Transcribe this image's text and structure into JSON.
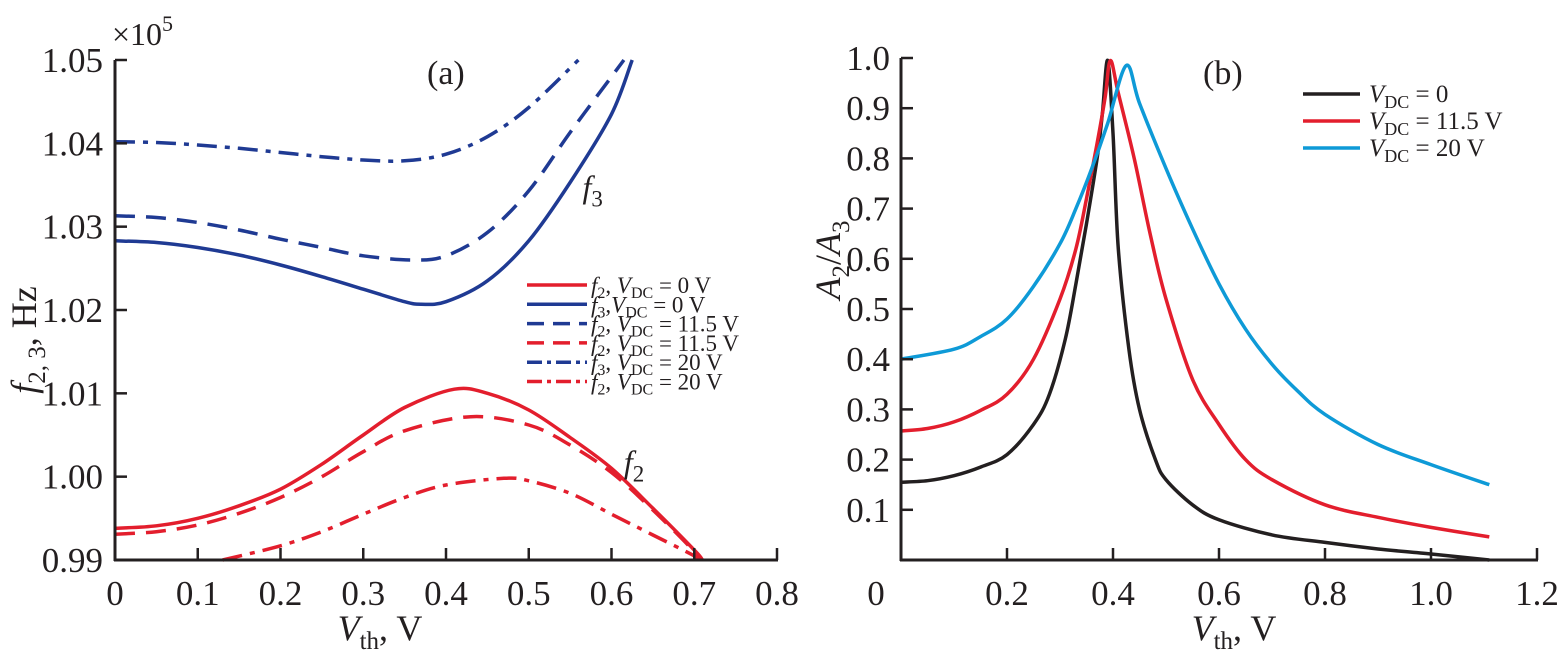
{
  "chart_data": [
    {
      "panel": "(a)",
      "type": "line",
      "title": "",
      "xlabel": "V_th, V",
      "xlabel_main": "V",
      "xlabel_sub": "th",
      "xlabel_tail": ", V",
      "ylabel": "f_{2,3}, Hz",
      "ylabel_main": "f",
      "ylabel_sub": "2, 3",
      "ylabel_tail": ", Hz",
      "y_multiplier": "×10",
      "y_multiplier_exp": "5",
      "xlim": [
        0,
        0.8
      ],
      "ylim": [
        0.99,
        1.05
      ],
      "xticks": [
        0,
        0.1,
        0.2,
        0.3,
        0.4,
        0.5,
        0.6,
        0.7,
        0.8
      ],
      "xtick_labels": [
        "0",
        "0.1",
        "0.2",
        "0.3",
        "0.4",
        "0.5",
        "0.6",
        "0.7",
        "0.8"
      ],
      "yticks": [
        0.99,
        1.0,
        1.01,
        1.02,
        1.03,
        1.04,
        1.05
      ],
      "ytick_labels": [
        "0.99",
        "1.00",
        "1.01",
        "1.02",
        "1.03",
        "1.04",
        "1.05"
      ],
      "grid": false,
      "legend_position": "center-right",
      "annotations": [
        {
          "text_main": "f",
          "text_sub": "3",
          "x": 0.565,
          "y": 1.0335
        },
        {
          "text_main": "f",
          "text_sub": "2",
          "x": 0.615,
          "y": 1.0005
        }
      ],
      "series": [
        {
          "name": "f2, VDC = 0 V",
          "legend_f": "f",
          "legend_fsub": "2",
          "legend_sep": ", ",
          "legend_v": "V",
          "legend_vsub": "DC",
          "legend_rest": " = 0 V",
          "color": "#e31e2d",
          "dash": "solid",
          "x": [
            0,
            0.05,
            0.1,
            0.15,
            0.2,
            0.25,
            0.3,
            0.35,
            0.41,
            0.45,
            0.5,
            0.55,
            0.6,
            0.65,
            0.7,
            0.71
          ],
          "y": [
            0.9938,
            0.9941,
            0.995,
            0.9965,
            0.9985,
            1.0015,
            1.005,
            1.0083,
            1.0105,
            1.01,
            1.008,
            1.0047,
            1.001,
            0.9962,
            0.9912,
            0.99
          ]
        },
        {
          "name": "f3, VDC = 0 V",
          "legend_f": "f",
          "legend_fsub": "3",
          "legend_sep": ",",
          "legend_v": "V",
          "legend_vsub": "DC",
          "legend_rest": " = 0 V",
          "color": "#1f3a93",
          "dash": "solid",
          "x": [
            0,
            0.05,
            0.1,
            0.15,
            0.2,
            0.25,
            0.3,
            0.35,
            0.37,
            0.4,
            0.45,
            0.5,
            0.55,
            0.6,
            0.625
          ],
          "y": [
            1.0283,
            1.0281,
            1.0275,
            1.0266,
            1.0254,
            1.024,
            1.0225,
            1.021,
            1.0207,
            1.021,
            1.0235,
            1.0283,
            1.0353,
            1.0435,
            1.05
          ]
        },
        {
          "name": "f2, VDC = 11.5 V",
          "legend_f": "f",
          "legend_fsub": "2",
          "legend_sep": ", ",
          "legend_v": "V",
          "legend_vsub": "DC",
          "legend_rest": " = 11.5 V",
          "color": "#1f3a93",
          "dash": "dashed",
          "plotted_as": "f3 curve (blue dashed)",
          "x": [
            0,
            0.05,
            0.1,
            0.15,
            0.2,
            0.25,
            0.3,
            0.36,
            0.4,
            0.45,
            0.5,
            0.55,
            0.6,
            0.615
          ],
          "y": [
            1.0313,
            1.0311,
            1.0305,
            1.0296,
            1.0285,
            1.0275,
            1.0265,
            1.026,
            1.0265,
            1.0293,
            1.0343,
            1.0413,
            1.048,
            1.05
          ]
        },
        {
          "name": "f2, VDC = 11.5 V",
          "legend_f": "f",
          "legend_fsub": "2",
          "legend_sep": ", ",
          "legend_v": "V",
          "legend_vsub": "DC",
          "legend_rest": " = 11.5 V",
          "color": "#e31e2d",
          "dash": "dashed",
          "x": [
            0,
            0.05,
            0.1,
            0.15,
            0.2,
            0.25,
            0.3,
            0.35,
            0.43,
            0.5,
            0.55,
            0.6,
            0.65,
            0.7,
            0.705
          ],
          "y": [
            0.9931,
            0.9934,
            0.9942,
            0.9956,
            0.9975,
            1.0,
            1.003,
            1.0055,
            1.0072,
            1.0062,
            1.0038,
            1.0005,
            0.996,
            0.991,
            0.99
          ]
        },
        {
          "name": "f3, VDC = 20 V",
          "legend_f": "f",
          "legend_fsub": "3",
          "legend_sep": ", ",
          "legend_v": "V",
          "legend_vsub": "DC",
          "legend_rest": " = 20 V",
          "color": "#1f3a93",
          "dash": "dashdot",
          "x": [
            0,
            0.05,
            0.1,
            0.15,
            0.2,
            0.25,
            0.3,
            0.35,
            0.4,
            0.45,
            0.5,
            0.56
          ],
          "y": [
            1.0402,
            1.0401,
            1.0398,
            1.0394,
            1.0389,
            1.0384,
            1.038,
            1.0379,
            1.0387,
            1.0408,
            1.0443,
            1.05
          ]
        },
        {
          "name": "f2, VDC = 20 V",
          "legend_f": "f",
          "legend_fsub": "2",
          "legend_sep": ", ",
          "legend_v": "V",
          "legend_vsub": "DC",
          "legend_rest": " = 20 V",
          "color": "#e31e2d",
          "dash": "dashdot",
          "x": [
            0.13,
            0.2,
            0.25,
            0.3,
            0.35,
            0.4,
            0.47,
            0.5,
            0.55,
            0.6,
            0.65,
            0.7,
            0.705
          ],
          "y": [
            0.99,
            0.9917,
            0.9934,
            0.9955,
            0.9975,
            0.999,
            0.9998,
            0.9995,
            0.998,
            0.9955,
            0.993,
            0.9905,
            0.99
          ]
        }
      ]
    },
    {
      "panel": "(b)",
      "type": "line",
      "title": "",
      "xlabel": "V_th, V",
      "xlabel_main": "V",
      "xlabel_sub": "th",
      "xlabel_tail": ", V",
      "ylabel": "A_2/A_3",
      "ylabel_a": "A",
      "ylabel_asub": "2",
      "ylabel_slash": "/",
      "ylabel_b": "A",
      "ylabel_bsub": "3",
      "xlim": [
        0,
        1.2
      ],
      "ylim": [
        0,
        1.0
      ],
      "xticks": [
        0,
        0.2,
        0.4,
        0.6,
        0.8,
        1.0,
        1.2
      ],
      "xtick_labels": [
        "0",
        "0.2",
        "0.4",
        "0.6",
        "0.8",
        "1.0",
        "1.2"
      ],
      "yticks": [
        0.1,
        0.2,
        0.3,
        0.4,
        0.5,
        0.6,
        0.7,
        0.8,
        0.9,
        1.0
      ],
      "ytick_labels": [
        "0.1",
        "0.2",
        "0.3",
        "0.4",
        "0.5",
        "0.6",
        "0.7",
        "0.8",
        "0.9",
        "1.0"
      ],
      "grid": false,
      "legend_position": "top-right",
      "series": [
        {
          "name": "VDC = 0",
          "legend_v": "V",
          "legend_vsub": "DC",
          "legend_rest": " = 0",
          "color": "#231f20",
          "x": [
            0,
            0.05,
            0.1,
            0.15,
            0.2,
            0.25,
            0.28,
            0.31,
            0.33,
            0.35,
            0.37,
            0.38,
            0.39,
            0.4,
            0.41,
            0.43,
            0.45,
            0.48,
            0.5,
            0.55,
            0.6,
            0.7,
            0.8,
            0.9,
            1.0,
            1.11
          ],
          "y": [
            0.155,
            0.158,
            0.168,
            0.185,
            0.21,
            0.27,
            0.33,
            0.44,
            0.55,
            0.67,
            0.8,
            0.89,
            0.995,
            0.85,
            0.62,
            0.42,
            0.3,
            0.2,
            0.16,
            0.11,
            0.08,
            0.05,
            0.035,
            0.022,
            0.012,
            0.0
          ]
        },
        {
          "name": "VDC = 11.5 V",
          "legend_v": "V",
          "legend_vsub": "DC",
          "legend_rest": " = 11.5 V",
          "color": "#e31e2d",
          "x": [
            0,
            0.05,
            0.1,
            0.15,
            0.2,
            0.25,
            0.3,
            0.33,
            0.35,
            0.37,
            0.385,
            0.395,
            0.41,
            0.44,
            0.47,
            0.5,
            0.55,
            0.6,
            0.65,
            0.7,
            0.8,
            0.9,
            1.0,
            1.11
          ],
          "y": [
            0.257,
            0.262,
            0.275,
            0.298,
            0.33,
            0.4,
            0.52,
            0.62,
            0.72,
            0.83,
            0.92,
            0.995,
            0.93,
            0.8,
            0.65,
            0.52,
            0.36,
            0.27,
            0.2,
            0.16,
            0.11,
            0.085,
            0.065,
            0.046
          ]
        },
        {
          "name": "VDC = 20 V",
          "legend_v": "V",
          "legend_vsub": "DC",
          "legend_rest": " = 20 V",
          "color": "#0e9ad7",
          "x": [
            0,
            0.1,
            0.15,
            0.2,
            0.25,
            0.3,
            0.33,
            0.36,
            0.39,
            0.425,
            0.45,
            0.5,
            0.55,
            0.6,
            0.65,
            0.7,
            0.75,
            0.8,
            0.9,
            1.0,
            1.11
          ],
          "y": [
            0.4,
            0.42,
            0.445,
            0.48,
            0.545,
            0.63,
            0.7,
            0.78,
            0.87,
            0.985,
            0.91,
            0.78,
            0.66,
            0.55,
            0.46,
            0.39,
            0.335,
            0.29,
            0.23,
            0.19,
            0.15
          ]
        }
      ]
    }
  ]
}
